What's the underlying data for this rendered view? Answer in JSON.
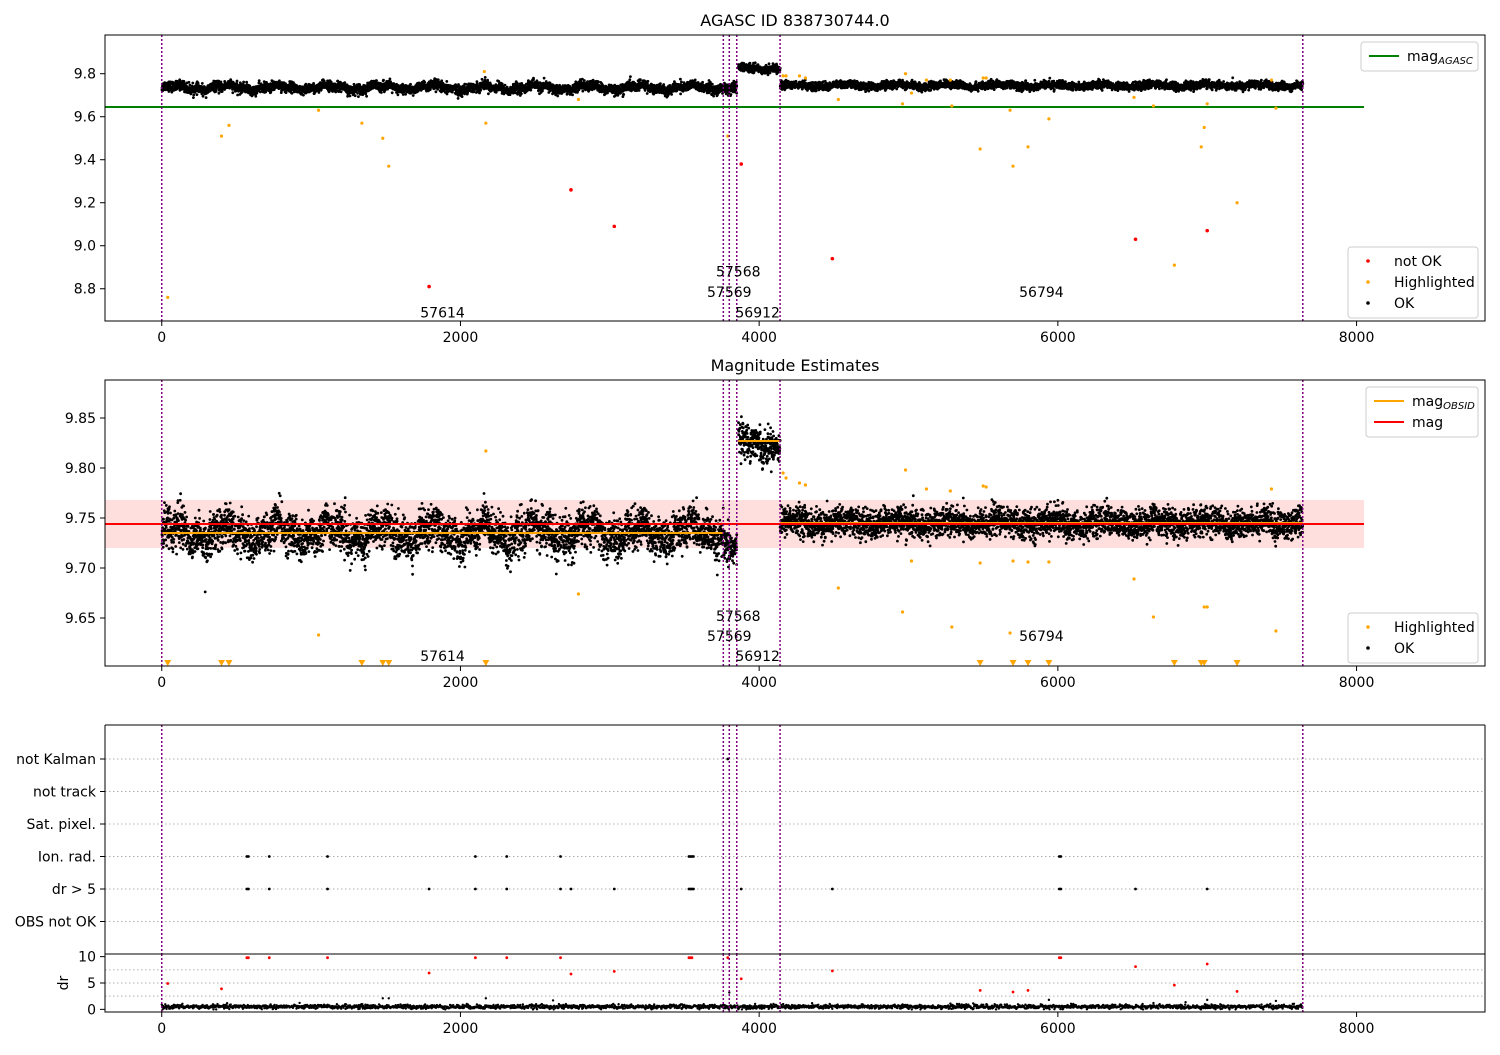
{
  "figure": {
    "title": "AGASC ID 838730744.0"
  },
  "chart_data": [
    {
      "type": "scatter",
      "title": "AGASC ID 838730744.0",
      "xlabel": "",
      "ylabel": "",
      "xlim": [
        -380,
        8860
      ],
      "ylim": [
        8.65,
        9.98
      ],
      "x_ticks": [
        0,
        2000,
        4000,
        6000,
        8000
      ],
      "y_ticks": [
        8.8,
        9.0,
        9.2,
        9.4,
        9.6,
        9.8
      ],
      "x_tick_labels": [
        "0",
        "2000",
        "4000",
        "6000",
        "8000"
      ],
      "y_tick_labels": [
        "8.8",
        "9.0",
        "9.2",
        "9.4",
        "9.6",
        "9.8"
      ],
      "legend_position": "top-right and bottom-right",
      "lines": [
        {
          "name": "mag",
          "subscript": "AGASC",
          "color": "#008000",
          "x": [
            -380,
            8050
          ],
          "y": [
            9.645,
            9.645
          ]
        }
      ],
      "obs_boundaries": [
        0,
        3760,
        3800,
        3850,
        4140,
        7640
      ],
      "obs_labels": [
        {
          "text": "57614",
          "x": 1880,
          "y": 8.69
        },
        {
          "text": "57568",
          "x": 3860,
          "y": 8.88
        },
        {
          "text": "57569",
          "x": 3800,
          "y": 8.785
        },
        {
          "text": "56912",
          "x": 3990,
          "y": 8.69
        },
        {
          "text": "56794",
          "x": 5890,
          "y": 8.785
        }
      ],
      "ok_segments": [
        {
          "x0": 0,
          "x1": 3760,
          "center": 9.735,
          "spread": 0.025,
          "wiggle": 0.01
        },
        {
          "x0": 3760,
          "x1": 3850,
          "center": 9.73,
          "spread": 0.03,
          "wiggle": 0.0
        },
        {
          "x0": 3860,
          "x1": 4140,
          "center": 9.825,
          "spread": 0.02,
          "wiggle": 0.005
        },
        {
          "x0": 4140,
          "x1": 7640,
          "center": 9.745,
          "spread": 0.02,
          "wiggle": 0.005
        }
      ],
      "series": [
        {
          "name": "not OK",
          "color": "#ff0000",
          "x": [
            1790,
            2740,
            3030,
            3880,
            4490,
            6520,
            7000
          ],
          "y": [
            8.81,
            9.26,
            9.09,
            9.38,
            8.94,
            9.03,
            9.07
          ]
        },
        {
          "name": "Highlighted",
          "color": "#ffa500",
          "x": [
            40,
            400,
            450,
            1050,
            1340,
            1480,
            1520,
            2160,
            2170,
            2790,
            3790,
            4160,
            4180,
            4270,
            4310,
            4530,
            4960,
            4980,
            5020,
            5120,
            5280,
            5290,
            5480,
            5500,
            5520,
            5680,
            5700,
            5800,
            5940,
            6510,
            6640,
            6780,
            6960,
            6980,
            7000,
            7200,
            7430,
            7460
          ],
          "y": [
            8.76,
            9.51,
            9.56,
            9.63,
            9.57,
            9.5,
            9.37,
            9.81,
            9.57,
            9.68,
            9.51,
            9.79,
            9.79,
            9.79,
            9.78,
            9.68,
            9.66,
            9.8,
            9.71,
            9.77,
            9.77,
            9.65,
            9.45,
            9.78,
            9.78,
            9.63,
            9.37,
            9.46,
            9.59,
            9.69,
            9.65,
            8.91,
            9.46,
            9.55,
            9.66,
            9.2,
            9.77,
            9.64
          ]
        },
        {
          "name": "OK",
          "color": "#000000"
        }
      ]
    },
    {
      "type": "scatter",
      "title": "Magnitude Estimates",
      "xlabel": "",
      "ylabel": "",
      "xlim": [
        -380,
        8860
      ],
      "ylim": [
        9.602,
        9.888
      ],
      "x_ticks": [
        0,
        2000,
        4000,
        6000,
        8000
      ],
      "y_ticks": [
        9.65,
        9.7,
        9.75,
        9.8,
        9.85
      ],
      "x_tick_labels": [
        "0",
        "2000",
        "4000",
        "6000",
        "8000"
      ],
      "y_tick_labels": [
        "9.65",
        "9.70",
        "9.75",
        "9.80",
        "9.85"
      ],
      "legend_position": "top-right and bottom-right",
      "band": {
        "x": [
          -380,
          8050
        ],
        "y": [
          9.72,
          9.768
        ],
        "color": "#ff0000",
        "opacity": 0.13
      },
      "lines": [
        {
          "name": "mag",
          "color": "#ff0000",
          "x": [
            -380,
            8050
          ],
          "y": [
            9.744,
            9.744
          ]
        }
      ],
      "obsid_lines": [
        {
          "name": "mag",
          "subscript": "OBSID",
          "color": "#ffa500",
          "x": [
            0,
            3760
          ],
          "y": [
            9.735,
            9.735
          ]
        },
        {
          "color": "#ffa500",
          "x": [
            3860,
            4140
          ],
          "y": [
            9.827,
            9.827
          ]
        },
        {
          "color": "#ffa500",
          "x": [
            4140,
            7640
          ],
          "y": [
            9.745,
            9.745
          ]
        }
      ],
      "obs_boundaries": [
        0,
        3760,
        3800,
        3850,
        4140,
        7640
      ],
      "obs_labels": [
        {
          "text": "57614",
          "x": 1880,
          "y": 9.612
        },
        {
          "text": "57568",
          "x": 3860,
          "y": 9.652
        },
        {
          "text": "57569",
          "x": 3800,
          "y": 9.632
        },
        {
          "text": "56912",
          "x": 3990,
          "y": 9.612
        },
        {
          "text": "56794",
          "x": 5890,
          "y": 9.632
        }
      ],
      "ok_segments": [
        {
          "x0": 0,
          "x1": 3760,
          "center": 9.735,
          "spread": 0.022,
          "wiggle": 0.008
        },
        {
          "x0": 3760,
          "x1": 3850,
          "center": 9.72,
          "spread": 0.02,
          "wiggle": 0.0
        },
        {
          "x0": 3860,
          "x1": 4140,
          "center": 9.825,
          "spread": 0.018,
          "wiggle": 0.004
        },
        {
          "x0": 4140,
          "x1": 7640,
          "center": 9.745,
          "spread": 0.016,
          "wiggle": 0.003
        }
      ],
      "series": [
        {
          "name": "Highlighted",
          "color": "#ffa500",
          "x": [
            1050,
            2170,
            2790,
            4160,
            4180,
            4270,
            4310,
            4530,
            4960,
            4980,
            5020,
            5120,
            5280,
            5290,
            5480,
            5500,
            5520,
            5680,
            5700,
            5800,
            5940,
            6510,
            6640,
            6980,
            7000,
            7430,
            7460
          ],
          "y": [
            9.633,
            9.817,
            9.674,
            9.795,
            9.79,
            9.785,
            9.783,
            9.68,
            9.656,
            9.798,
            9.707,
            9.779,
            9.777,
            9.641,
            9.705,
            9.782,
            9.781,
            9.635,
            9.707,
            9.706,
            9.706,
            9.689,
            9.651,
            9.661,
            9.661,
            9.779,
            9.637
          ]
        },
        {
          "name": "Highlighted (below axis)",
          "color": "#ffa500",
          "marker": "triangle-down",
          "x": [
            40,
            400,
            450,
            1340,
            1480,
            1520,
            2170,
            5480,
            5700,
            5800,
            5940,
            6780,
            6960,
            6980,
            7200
          ],
          "y": [
            9.604,
            9.604,
            9.604,
            9.604,
            9.604,
            9.604,
            9.604,
            9.604,
            9.604,
            9.604,
            9.604,
            9.604,
            9.604,
            9.604,
            9.604
          ]
        },
        {
          "name": "OK",
          "color": "#000000"
        }
      ]
    },
    {
      "type": "scatter",
      "title": "",
      "xlabel": "",
      "ylabel": "",
      "xlim": [
        -380,
        8860
      ],
      "y_categories": [
        "not Kalman",
        "not track",
        "Sat. pixel.",
        "Ion. rad.",
        "dr > 5",
        "OBS not OK"
      ],
      "obs_boundaries": [
        0,
        3760,
        3800,
        3850,
        4140,
        7640
      ],
      "flags": {
        "Ion. rad.": [
          570,
          580,
          720,
          1110,
          2100,
          2310,
          2670,
          3530,
          3540,
          3550,
          3560,
          6010,
          6020
        ],
        "dr > 5": [
          570,
          580,
          720,
          1110,
          1790,
          2100,
          2310,
          2670,
          2740,
          3030,
          3530,
          3540,
          3550,
          3560,
          3880,
          4490,
          6010,
          6020,
          6520,
          7000
        ],
        "not Kalman": [
          3790
        ]
      }
    },
    {
      "type": "scatter",
      "title": "",
      "xlabel": "",
      "ylabel": "dr",
      "xlim": [
        -380,
        8860
      ],
      "ylim": [
        -0.5,
        10.5
      ],
      "x_ticks": [
        0,
        2000,
        4000,
        6000,
        8000
      ],
      "y_ticks": [
        0,
        5,
        10
      ],
      "x_tick_labels": [
        "0",
        "2000",
        "4000",
        "6000",
        "8000"
      ],
      "y_tick_labels": [
        "0",
        "5",
        "10"
      ],
      "grid_y": [
        2.5,
        5,
        7.5
      ],
      "obs_boundaries": [
        0,
        3760,
        3800,
        3850,
        4140,
        7640
      ],
      "ok_band": {
        "x0": 0,
        "x1": 7640,
        "center": 0.5,
        "spread": 0.4
      },
      "series": [
        {
          "name": "dr (not OK)",
          "color": "#ff0000",
          "x": [
            40,
            400,
            570,
            580,
            720,
            1110,
            1790,
            2100,
            2310,
            2670,
            2740,
            3030,
            3530,
            3540,
            3550,
            3790,
            3880,
            4490,
            5480,
            5700,
            5800,
            6010,
            6020,
            6520,
            6780,
            7000,
            7200
          ],
          "y": [
            4.9,
            3.9,
            9.8,
            9.8,
            9.8,
            9.8,
            6.9,
            9.8,
            9.8,
            9.8,
            6.7,
            7.2,
            9.8,
            9.8,
            9.8,
            9.8,
            5.8,
            7.3,
            3.6,
            3.3,
            3.6,
            9.8,
            9.8,
            8.1,
            4.6,
            8.6,
            3.4
          ]
        },
        {
          "name": "dr (other)",
          "color": "#000000",
          "x": [
            1480,
            1520,
            2170,
            2620,
            5940,
            6640,
            7000,
            7460,
            3800
          ],
          "y": [
            2.1,
            2.1,
            2.1,
            1.7,
            1.8,
            1.2,
            1.8,
            1.6,
            3.2
          ]
        }
      ]
    }
  ],
  "legends": {
    "panel1_top": [
      {
        "label": "mag",
        "sub": "AGASC",
        "color": "#008000"
      }
    ],
    "panel1_bottom": [
      {
        "label": "not OK",
        "color": "#ff0000"
      },
      {
        "label": "Highlighted",
        "color": "#ffa500"
      },
      {
        "label": "OK",
        "color": "#000000"
      }
    ],
    "panel2_top": [
      {
        "label": "mag",
        "sub": "OBSID",
        "color": "#ffa500"
      },
      {
        "label": "mag",
        "sub": "",
        "color": "#ff0000"
      }
    ],
    "panel2_bottom": [
      {
        "label": "Highlighted",
        "color": "#ffa500"
      },
      {
        "label": "OK",
        "color": "#000000"
      }
    ]
  },
  "colors": {
    "obs_boundary": "#800080",
    "grid": "#b0b0b0"
  }
}
